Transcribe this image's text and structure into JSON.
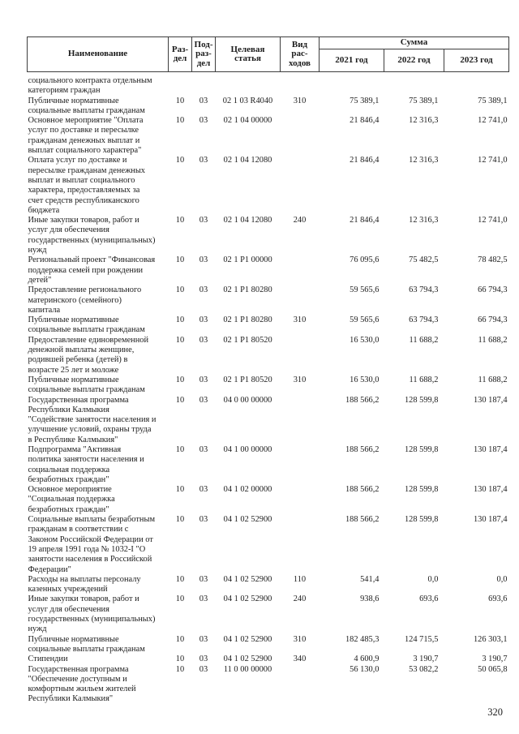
{
  "page": {
    "number": "320"
  },
  "colors": {
    "ink": "#1c1c1c",
    "border": "#3d3d3d",
    "background": "#ffffff"
  },
  "table": {
    "headers": {
      "name": "Наименование",
      "razdel": "Раз-\nдел",
      "podrazdel": "Под-\nраз-\nдел",
      "target": "Целевая\nстатья",
      "vid": "Вид\nрас-\nходов",
      "summa": "Сумма",
      "y2021": "2021 год",
      "y2022": "2022 год",
      "y2023": "2023 год"
    },
    "rows": [
      {
        "name": "социального контракта отдельным\nкатегориям граждан",
        "razdel": "",
        "podrazdel": "",
        "target": "",
        "vid": "",
        "y2021": "",
        "y2022": "",
        "y2023": ""
      },
      {
        "name": "Публичные нормативные\nсоциальные выплаты гражданам",
        "razdel": "10",
        "podrazdel": "03",
        "target": "02 1 03 R4040",
        "vid": "310",
        "y2021": "75 389,1",
        "y2022": "75 389,1",
        "y2023": "75 389,1"
      },
      {
        "name": "Основное мероприятие \"Оплата\nуслуг по доставке и пересылке\nгражданам денежных выплат и\nвыплат социального характера\"",
        "razdel": "10",
        "podrazdel": "03",
        "target": "02 1 04 00000",
        "vid": "",
        "y2021": "21 846,4",
        "y2022": "12 316,3",
        "y2023": "12 741,0"
      },
      {
        "name": "Оплата услуг по доставке и\nпересылке гражданам денежных\nвыплат и выплат социального\nхарактера, предоставляемых за\nсчет средств республиканского\nбюджета",
        "razdel": "10",
        "podrazdel": "03",
        "target": "02 1 04 12080",
        "vid": "",
        "y2021": "21 846,4",
        "y2022": "12 316,3",
        "y2023": "12 741,0"
      },
      {
        "name": "Иные закупки товаров, работ и\nуслуг для обеспечения\nгосударственных (муниципальных)\nнужд",
        "razdel": "10",
        "podrazdel": "03",
        "target": "02 1 04 12080",
        "vid": "240",
        "y2021": "21 846,4",
        "y2022": "12 316,3",
        "y2023": "12 741,0"
      },
      {
        "name": "Региональный проект \"Финансовая\nподдержка семей при рождении\nдетей\"",
        "razdel": "10",
        "podrazdel": "03",
        "target": "02 1 P1 00000",
        "vid": "",
        "y2021": "76 095,6",
        "y2022": "75 482,5",
        "y2023": "78 482,5"
      },
      {
        "name": "Предоставление регионального\nматеринского (семейного)\nкапитала",
        "razdel": "10",
        "podrazdel": "03",
        "target": "02 1 P1 80280",
        "vid": "",
        "y2021": "59 565,6",
        "y2022": "63 794,3",
        "y2023": "66 794,3"
      },
      {
        "name": "Публичные нормативные\nсоциальные выплаты гражданам",
        "razdel": "10",
        "podrazdel": "03",
        "target": "02 1 P1 80280",
        "vid": "310",
        "y2021": "59 565,6",
        "y2022": "63 794,3",
        "y2023": "66 794,3"
      },
      {
        "name": "Предоставление единовременной\nденежной выплаты женщине,\nродившей ребенка (детей) в\nвозрасте 25 лет и моложе",
        "razdel": "10",
        "podrazdel": "03",
        "target": "02 1 P1 80520",
        "vid": "",
        "y2021": "16 530,0",
        "y2022": "11 688,2",
        "y2023": "11 688,2"
      },
      {
        "name": "Публичные нормативные\nсоциальные выплаты гражданам",
        "razdel": "10",
        "podrazdel": "03",
        "target": "02 1 P1 80520",
        "vid": "310",
        "y2021": "16 530,0",
        "y2022": "11 688,2",
        "y2023": "11 688,2"
      },
      {
        "name": "Государственная программа\nРеспублики Калмыкия\n\"Содействие занятости населения и\nулучшение условий, охраны труда\nв Республике Калмыкия\"",
        "razdel": "10",
        "podrazdel": "03",
        "target": "04 0 00 00000",
        "vid": "",
        "y2021": "188 566,2",
        "y2022": "128 599,8",
        "y2023": "130 187,4"
      },
      {
        "name": "Подпрограмма \"Активная\nполитика занятости населения и\nсоциальная поддержка\nбезработных граждан\"",
        "razdel": "10",
        "podrazdel": "03",
        "target": "04 1 00 00000",
        "vid": "",
        "y2021": "188 566,2",
        "y2022": "128 599,8",
        "y2023": "130 187,4"
      },
      {
        "name": "Основное мероприятие\n\"Социальная поддержка\nбезработных граждан\"",
        "razdel": "10",
        "podrazdel": "03",
        "target": "04 1 02 00000",
        "vid": "",
        "y2021": "188 566,2",
        "y2022": "128 599,8",
        "y2023": "130 187,4"
      },
      {
        "name": "Социальные выплаты безработным\nгражданам в соответствии с\nЗаконом Российской Федерации от\n19 апреля 1991 года № 1032-I \"О\nзанятости населения в Российской\nФедерации\"",
        "razdel": "10",
        "podrazdel": "03",
        "target": "04 1 02 52900",
        "vid": "",
        "y2021": "188 566,2",
        "y2022": "128 599,8",
        "y2023": "130 187,4"
      },
      {
        "name": "Расходы на выплаты персоналу\nказенных учреждений",
        "razdel": "10",
        "podrazdel": "03",
        "target": "04 1 02 52900",
        "vid": "110",
        "y2021": "541,4",
        "y2022": "0,0",
        "y2023": "0,0"
      },
      {
        "name": "Иные закупки товаров, работ и\nуслуг для обеспечения\nгосударственных (муниципальных)\nнужд",
        "razdel": "10",
        "podrazdel": "03",
        "target": "04 1 02 52900",
        "vid": "240",
        "y2021": "938,6",
        "y2022": "693,6",
        "y2023": "693,6"
      },
      {
        "name": "Публичные нормативные\nсоциальные выплаты гражданам",
        "razdel": "10",
        "podrazdel": "03",
        "target": "04 1 02 52900",
        "vid": "310",
        "y2021": "182 485,3",
        "y2022": "124 715,5",
        "y2023": "126 303,1"
      },
      {
        "name": "Стипендии",
        "razdel": "10",
        "podrazdel": "03",
        "target": "04 1 02 52900",
        "vid": "340",
        "y2021": "4 600,9",
        "y2022": "3 190,7",
        "y2023": "3 190,7"
      },
      {
        "name": "Государственная программа\n\"Обеспечение доступным и\nкомфортным жильем жителей\nРеспублики Калмыкия\"",
        "razdel": "10",
        "podrazdel": "03",
        "target": "11 0 00 00000",
        "vid": "",
        "y2021": "56 130,0",
        "y2022": "53 082,2",
        "y2023": "50 065,8"
      }
    ]
  }
}
